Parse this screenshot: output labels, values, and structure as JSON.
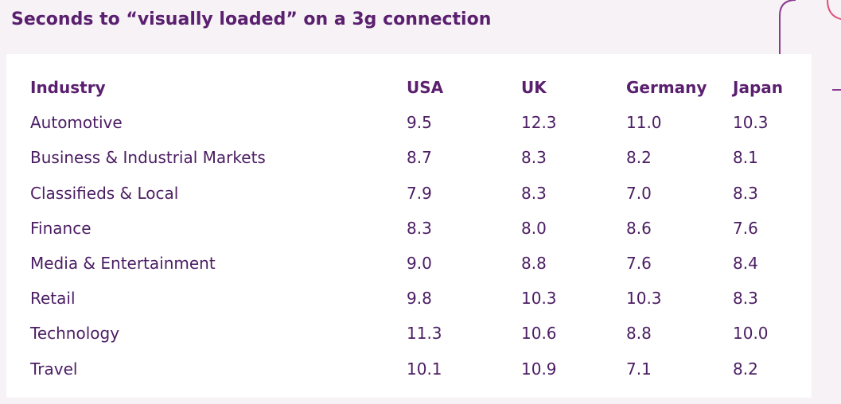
{
  "header": {
    "title": "Seconds to “visually loaded” on a 3g connection"
  },
  "table": {
    "columns": [
      "Industry",
      "USA",
      "UK",
      "Germany",
      "Japan"
    ],
    "rows": [
      [
        "Automotive",
        "9.5",
        "12.3",
        "11.0",
        "10.3"
      ],
      [
        "Business & Industrial Markets",
        "8.7",
        "8.3",
        "8.2",
        "8.1"
      ],
      [
        "Classifieds & Local",
        "7.9",
        "8.3",
        "7.0",
        "8.3"
      ],
      [
        "Finance",
        "8.3",
        "8.0",
        "8.6",
        "7.6"
      ],
      [
        "Media & Entertainment",
        "9.0",
        "8.8",
        "7.6",
        "8.4"
      ],
      [
        "Retail",
        "9.8",
        "10.3",
        "10.3",
        "8.3"
      ],
      [
        "Technology",
        "11.3",
        "10.6",
        "8.8",
        "10.0"
      ],
      [
        "Travel",
        "10.1",
        "10.9",
        "7.1",
        "8.2"
      ]
    ]
  }
}
